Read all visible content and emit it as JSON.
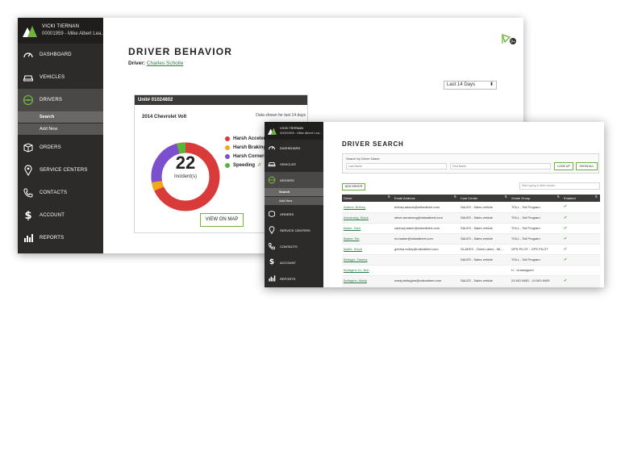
{
  "behavior": {
    "user": {
      "name": "VICKI TIERNAN",
      "account": "00001959 - Mike Albert Lea..."
    },
    "nav": [
      {
        "label": "DASHBOARD",
        "icon": "speedometer-icon"
      },
      {
        "label": "VEHICLES",
        "icon": "car-icon"
      },
      {
        "label": "DRIVERS",
        "icon": "steering-wheel-icon",
        "active": true
      },
      {
        "label": "ORDERS",
        "icon": "box-icon"
      },
      {
        "label": "SERVICE CENTERS",
        "icon": "location-pin-icon"
      },
      {
        "label": "CONTACTS",
        "icon": "phone-icon"
      },
      {
        "label": "ACCOUNT",
        "icon": "dollar-icon"
      },
      {
        "label": "REPORTS",
        "icon": "bar-chart-icon"
      }
    ],
    "subnav": [
      "Search",
      "Add New"
    ],
    "title": "DRIVER BEHAVIOR",
    "driver_label": "Driver:",
    "driver_name": "Charles Scholle",
    "date_range": "Last 14 Days",
    "share_badge": "9+",
    "card": {
      "unit": "Unit# 01024802",
      "vehicle": "2014 Chevrolet Volt",
      "note": "Data shown for last 14 days",
      "total": "22",
      "total_label": "Incident(s)",
      "legend": [
        {
          "label": "Harsh Acceleration",
          "color": "#d93a3a"
        },
        {
          "label": "Harsh Braking",
          "color": "#f2a81d"
        },
        {
          "label": "Harsh Cornering",
          "color": "#7c4fcf"
        },
        {
          "label": "Speeding",
          "color": "#5ab535"
        }
      ],
      "speeding_arrows": "//",
      "map_button": "VIEW ON MAP"
    },
    "colors": {
      "accent": "#6fb33c",
      "sidebar": "#2d2b29",
      "link": "#2e7d45"
    }
  },
  "search": {
    "user": {
      "name": "VICKI TIERNAN",
      "account": "00001959 - Mike Albert Lea..."
    },
    "nav": [
      {
        "label": "DASHBOARD",
        "icon": "speedometer-icon"
      },
      {
        "label": "VEHICLES",
        "icon": "car-icon"
      },
      {
        "label": "DRIVERS",
        "icon": "steering-wheel-icon",
        "active": true
      },
      {
        "label": "ORDERS",
        "icon": "box-icon"
      },
      {
        "label": "SERVICE CENTERS",
        "icon": "location-pin-icon"
      },
      {
        "label": "CONTACTS",
        "icon": "phone-icon"
      },
      {
        "label": "ACCOUNT",
        "icon": "dollar-icon"
      },
      {
        "label": "REPORTS",
        "icon": "bar-chart-icon"
      }
    ],
    "subnav": [
      "Search",
      "Add New"
    ],
    "title": "DRIVER SEARCH",
    "search_label": "Search by Driver Name",
    "last_name_placeholder": "Last Name",
    "first_name_placeholder": "First Name",
    "lookup_button": "LOOK UP",
    "show_all_button": "SHOW ALL",
    "add_driver_button": "ADD DRIVER",
    "filter_placeholder": "Start typing to filter results...",
    "columns": [
      "Driver",
      "Email Address",
      "Cost Center",
      "Grade Group",
      "Enabled"
    ],
    "rows": [
      {
        "driver": "Adams, Britney",
        "email": "britney.adams@mikealbert.com",
        "cost": "SALES - Sales vehicle",
        "grade": "TOLL - Toll Program",
        "enabled": "✔"
      },
      {
        "driver": "Armstrong, Steve",
        "email": "steve.armstrong@mikealbert.com",
        "cost": "SALES - Sales vehicle",
        "grade": "TOLL - Toll Program",
        "enabled": "✔"
      },
      {
        "driver": "Baker, Zach",
        "email": "zachary.baker@mikealbert.com",
        "cost": "SALES - Sales vehicle",
        "grade": "TOLL - Toll Program",
        "enabled": "✔"
      },
      {
        "driver": "Barker, Ric",
        "email": "ric.barker@mikealbert.com",
        "cost": "SALES - Sales vehicle",
        "grade": "TOLL - Toll Program",
        "enabled": "✔"
      },
      {
        "driver": "Bathe, Steph",
        "email": "geetha.reddy@mikealbert.com",
        "cost": "GLAKES - Great Lakes - ML...",
        "grade": "GPS PILOT - GPS PILOT",
        "enabled": "✔"
      },
      {
        "driver": "Beltagie, Tammy",
        "email": "",
        "cost": "SALES - Sales vehicle",
        "grade": "TOLL - Toll Program",
        "enabled": "✔"
      },
      {
        "driver": "Beltagine #1, Bob",
        "email": "",
        "cost": "",
        "grade": "U - Unassigned",
        "enabled": ""
      },
      {
        "driver": "Beltagine, Marty",
        "email": "marty.beltagine@mikealbert.com",
        "cost": "SALES - Sales vehicle",
        "grade": "24 MO 6WD - 24 MO 6WD",
        "enabled": "✔"
      }
    ]
  }
}
